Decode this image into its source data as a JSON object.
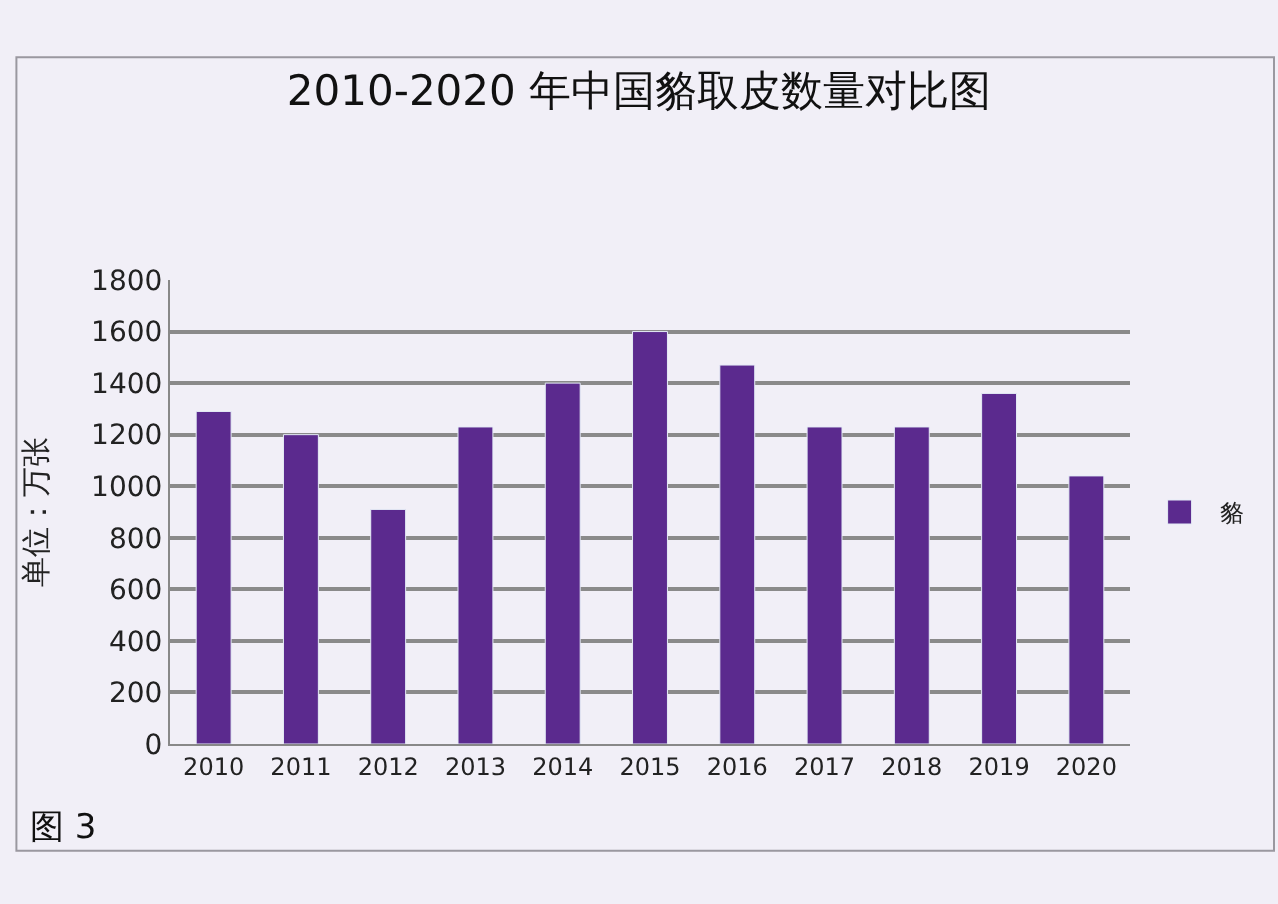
{
  "chart_data": {
    "type": "bar",
    "title": "2010-2020 年中国貉取皮数量对比图",
    "ylabel": "单位：万张",
    "categories": [
      "2010",
      "2011",
      "2012",
      "2013",
      "2014",
      "2015",
      "2016",
      "2017",
      "2018",
      "2019",
      "2020"
    ],
    "series": [
      {
        "name": "貉",
        "color": "#5b2a8e",
        "values": [
          1290,
          1200,
          910,
          1230,
          1400,
          1600,
          1470,
          1230,
          1230,
          1360,
          1040
        ]
      }
    ],
    "ylim": [
      0,
      1800
    ],
    "yticks": [
      0,
      200,
      400,
      600,
      800,
      1000,
      1200,
      1400,
      1600,
      1800
    ],
    "grid": "y",
    "legend": "right",
    "annotations": [
      "图 3"
    ]
  }
}
